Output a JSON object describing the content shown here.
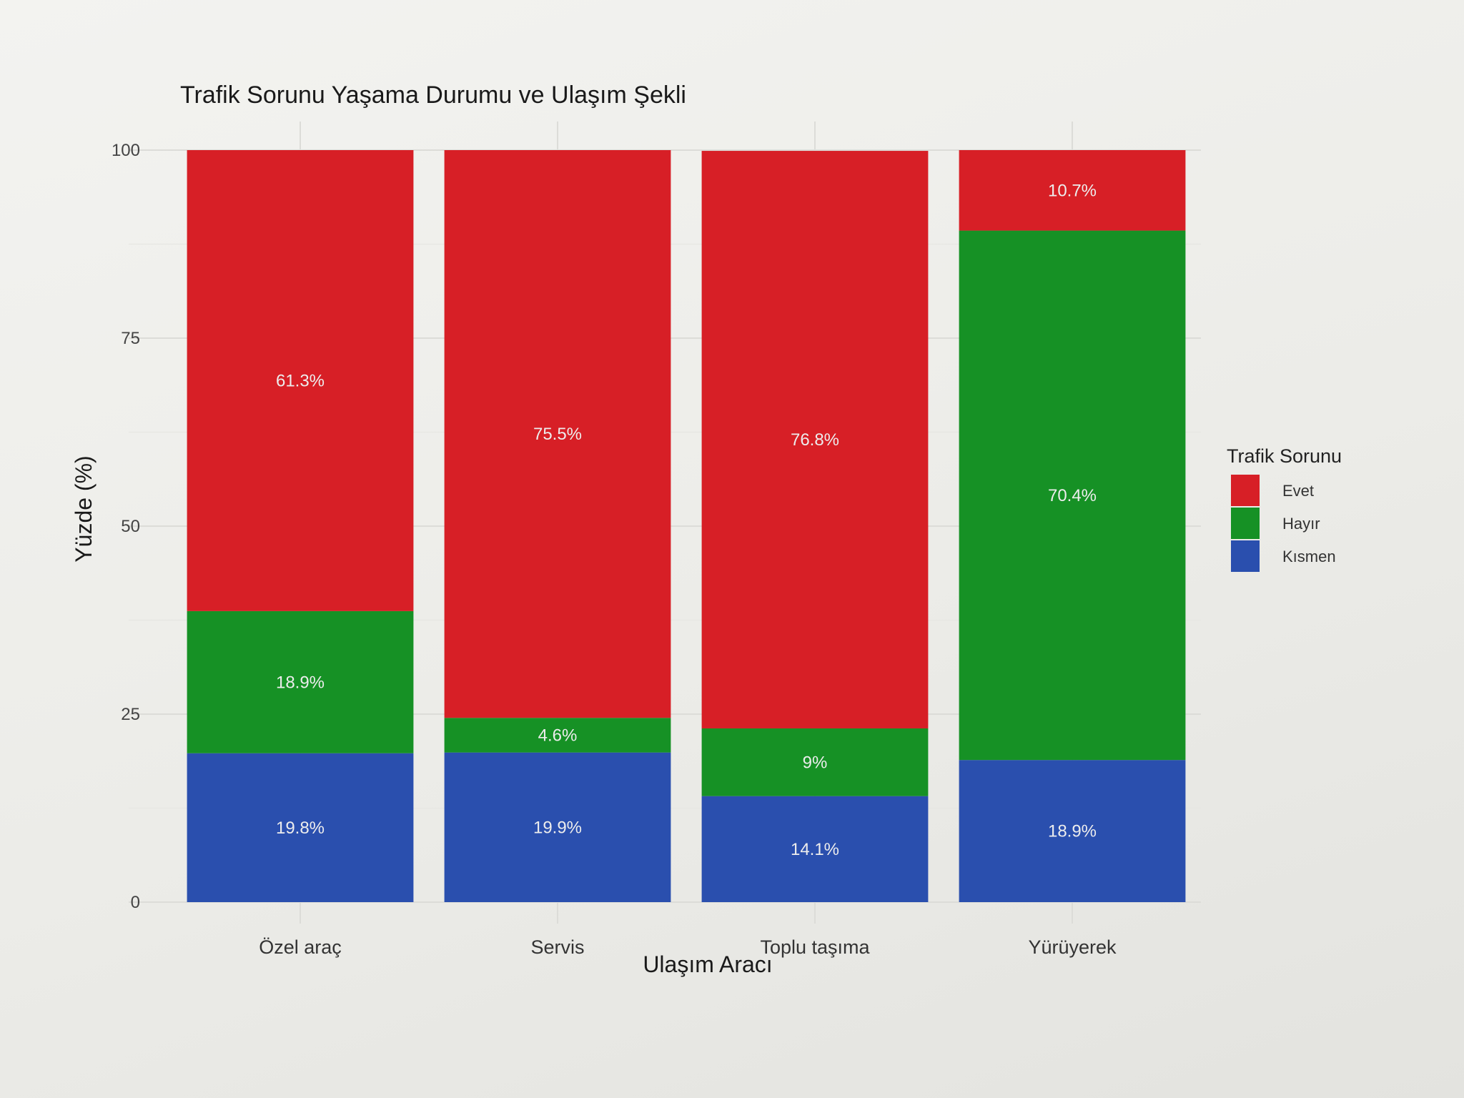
{
  "chart_data": {
    "type": "bar",
    "stacked": true,
    "title": "Trafik Sorunu Yaşama Durumu ve Ulaşım Şekli",
    "xlabel": "Ulaşım Aracı",
    "ylabel": "Yüzde (%)",
    "ylim": [
      0,
      100
    ],
    "yticks": [
      "0",
      "25",
      "50",
      "75",
      "100"
    ],
    "categories": [
      "Özel araç",
      "Servis",
      "Toplu taşıma",
      "Yürüyerek"
    ],
    "grid": true,
    "legend": {
      "title": "Trafik Sorunu",
      "position": "right"
    },
    "series": [
      {
        "name": "Kısmen",
        "color": "#2a4fae",
        "values": [
          19.8,
          19.9,
          14.1,
          18.9
        ],
        "labels": [
          "19.8%",
          "19.9%",
          "14.1%",
          "18.9%"
        ]
      },
      {
        "name": "Hayır",
        "color": "#169125",
        "values": [
          18.9,
          4.6,
          9,
          70.4
        ],
        "labels": [
          "18.9%",
          "4.6%",
          "9%",
          "70.4%"
        ]
      },
      {
        "name": "Evet",
        "color": "#d71f26",
        "values": [
          61.3,
          75.5,
          76.8,
          10.7
        ],
        "labels": [
          "61.3%",
          "75.5%",
          "76.8%",
          "10.7%"
        ]
      }
    ],
    "legend_order": [
      "Evet",
      "Hayır",
      "Kısmen"
    ]
  }
}
